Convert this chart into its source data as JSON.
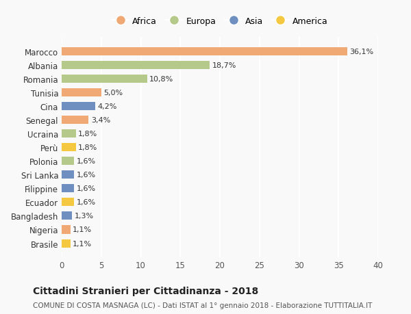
{
  "countries": [
    "Brasile",
    "Nigeria",
    "Bangladesh",
    "Ecuador",
    "Filippine",
    "Sri Lanka",
    "Polonia",
    "Perù",
    "Ucraina",
    "Senegal",
    "Cina",
    "Tunisia",
    "Romania",
    "Albania",
    "Marocco"
  ],
  "values": [
    1.1,
    1.1,
    1.3,
    1.6,
    1.6,
    1.6,
    1.6,
    1.8,
    1.8,
    3.4,
    4.2,
    5.0,
    10.8,
    18.7,
    36.1
  ],
  "labels": [
    "1,1%",
    "1,1%",
    "1,3%",
    "1,6%",
    "1,6%",
    "1,6%",
    "1,6%",
    "1,8%",
    "1,8%",
    "3,4%",
    "4,2%",
    "5,0%",
    "10,8%",
    "18,7%",
    "36,1%"
  ],
  "continents": [
    "America",
    "Africa",
    "Asia",
    "America",
    "Asia",
    "Asia",
    "Europa",
    "America",
    "Europa",
    "Africa",
    "Asia",
    "Africa",
    "Europa",
    "Europa",
    "Africa"
  ],
  "colors": {
    "Africa": "#F0A875",
    "Europa": "#B5C98A",
    "Asia": "#6E8FC0",
    "America": "#F5C842"
  },
  "legend_order": [
    "Africa",
    "Europa",
    "Asia",
    "America"
  ],
  "legend_colors": [
    "#F0A875",
    "#B5C98A",
    "#6E8FC0",
    "#F5C842"
  ],
  "title": "Cittadini Stranieri per Cittadinanza - 2018",
  "subtitle": "COMUNE DI COSTA MASNAGA (LC) - Dati ISTAT al 1° gennaio 2018 - Elaborazione TUTTITALIA.IT",
  "xlim": [
    0,
    40
  ],
  "xticks": [
    0,
    5,
    10,
    15,
    20,
    25,
    30,
    35,
    40
  ],
  "bg_color": "#f9f9f9",
  "grid_color": "#ffffff",
  "bar_height": 0.6
}
